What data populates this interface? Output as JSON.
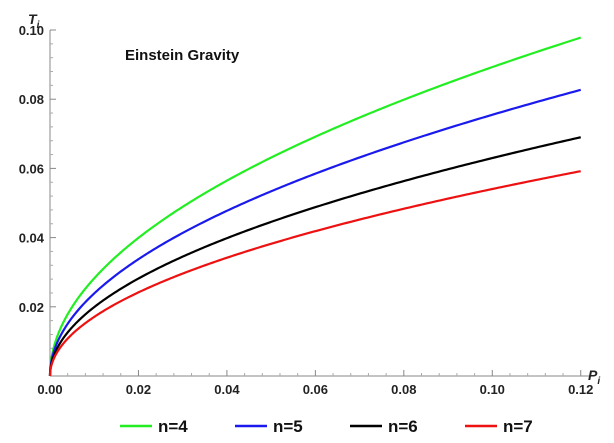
{
  "chart_data": {
    "type": "line",
    "title": "",
    "annotation": "Einstein Gravity",
    "xlabel": "P",
    "xlabel_sub": "i",
    "ylabel": "T",
    "ylabel_sub": "i",
    "xlim": [
      0,
      0.123
    ],
    "ylim": [
      0,
      0.1
    ],
    "x_ticks": [
      "0.00",
      "0.02",
      "0.04",
      "0.06",
      "0.08",
      "0.10",
      "0.12"
    ],
    "y_ticks": [
      "0.02",
      "0.04",
      "0.06",
      "0.08",
      "0.10"
    ],
    "grid": false,
    "legend_position": "bottom",
    "x": [
      0,
      0.001,
      0.005,
      0.01,
      0.02,
      0.03,
      0.04,
      0.05,
      0.06,
      0.07,
      0.08,
      0.09,
      0.1,
      0.11,
      0.12
    ],
    "series": [
      {
        "name": "n=4",
        "color": "#22ee22",
        "values": [
          0,
          0.0089,
          0.02,
          0.0283,
          0.0399,
          0.0489,
          0.0565,
          0.0631,
          0.0692,
          0.0747,
          0.0799,
          0.0847,
          0.0893,
          0.0937,
          0.0978
        ]
      },
      {
        "name": "n=5",
        "color": "#1a1aee",
        "values": [
          0,
          0.0075,
          0.0169,
          0.0239,
          0.0338,
          0.0413,
          0.0477,
          0.0534,
          0.0585,
          0.0632,
          0.0675,
          0.0716,
          0.0755,
          0.0792,
          0.0827
        ]
      },
      {
        "name": "n=6",
        "color": "#000000",
        "values": [
          0,
          0.0063,
          0.0141,
          0.0199,
          0.0282,
          0.0345,
          0.0398,
          0.0445,
          0.0488,
          0.0527,
          0.0563,
          0.0597,
          0.063,
          0.066,
          0.069
        ]
      },
      {
        "name": "n=7",
        "color": "#ee1111",
        "values": [
          0,
          0.0054,
          0.0121,
          0.0171,
          0.0242,
          0.0296,
          0.0342,
          0.0382,
          0.0419,
          0.0452,
          0.0484,
          0.0513,
          0.054,
          0.0567,
          0.0592
        ]
      }
    ]
  }
}
